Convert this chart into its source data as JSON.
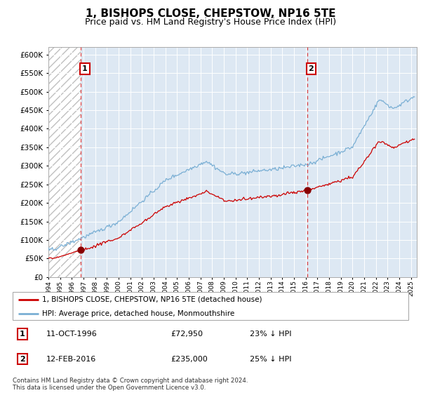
{
  "title": "1, BISHOPS CLOSE, CHEPSTOW, NP16 5TE",
  "subtitle": "Price paid vs. HM Land Registry's House Price Index (HPI)",
  "ylim": [
    0,
    620000
  ],
  "xlim_start": 1994.0,
  "xlim_end": 2025.5,
  "hatch_end_year": 1996.78,
  "sale1_year": 1996.78,
  "sale1_price": 72950,
  "sale1_label": "1",
  "sale2_year": 2016.12,
  "sale2_price": 235000,
  "sale2_label": "2",
  "red_line_color": "#cc0000",
  "blue_line_color": "#7aafd4",
  "dot_color": "#880000",
  "dashed_color": "#dd4444",
  "hatch_color": "#bbbbbb",
  "bg_color": "#dde8f3",
  "legend_line1": "1, BISHOPS CLOSE, CHEPSTOW, NP16 5TE (detached house)",
  "legend_line2": "HPI: Average price, detached house, Monmouthshire",
  "annotation1_date": "11-OCT-1996",
  "annotation1_price": "£72,950",
  "annotation1_hpi": "23% ↓ HPI",
  "annotation2_date": "12-FEB-2016",
  "annotation2_price": "£235,000",
  "annotation2_hpi": "25% ↓ HPI",
  "footer": "Contains HM Land Registry data © Crown copyright and database right 2024.\nThis data is licensed under the Open Government Licence v3.0.",
  "title_fontsize": 11,
  "subtitle_fontsize": 9
}
